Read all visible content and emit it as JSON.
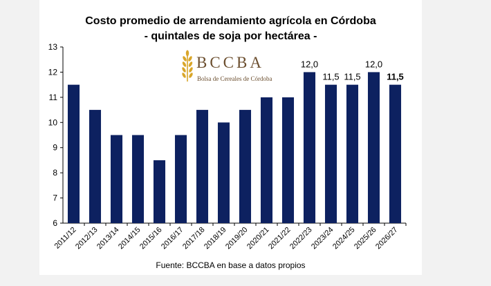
{
  "chart_data": {
    "type": "bar",
    "title": "Costo promedio de arrendamiento agrícola en Córdoba",
    "subtitle": "- quintales de soja por hectárea -",
    "categories": [
      "2011/12",
      "2012/13",
      "2013/14",
      "2014/15",
      "2015/16",
      "2016/17",
      "2017/18",
      "2018/19",
      "2019/20",
      "2020/21",
      "2021/22",
      "2022/23",
      "2023/24",
      "2024/25",
      "2025/26",
      "2026/27"
    ],
    "values": [
      11.5,
      10.5,
      9.5,
      9.5,
      8.5,
      9.5,
      10.5,
      10.0,
      10.5,
      11.0,
      11.0,
      12.0,
      11.5,
      11.5,
      12.0,
      11.5
    ],
    "data_labels": [
      "",
      "",
      "",
      "",
      "",
      "",
      "",
      "",
      "",
      "",
      "",
      "12,0",
      "11,5",
      "11,5",
      "12,0",
      "11,5"
    ],
    "bold_label_index": 15,
    "yticks": [
      "6",
      "7",
      "8",
      "9",
      "10",
      "11",
      "12",
      "13"
    ],
    "ylim": [
      6,
      13
    ],
    "xlabel": "",
    "ylabel": "",
    "grid": false,
    "bar_color": "#0d2160",
    "source": "Fuente: BCCBA en base a datos propios"
  },
  "logo": {
    "word": "BCCBA",
    "subtitle": "Bolsa de Cereales de Córdoba",
    "color": "#6b4e2e",
    "icon": "wheat-icon"
  }
}
